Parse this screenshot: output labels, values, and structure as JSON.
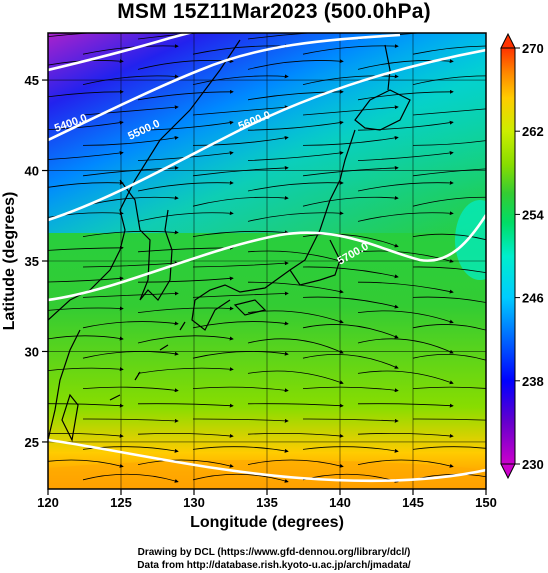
{
  "title": "MSM 15Z11Mar2023 (500.0hPa)",
  "x_axis": {
    "title": "Longitude (degrees)",
    "ticks": [
      "120",
      "125",
      "130",
      "135",
      "140",
      "145",
      "150"
    ],
    "range": [
      120,
      150
    ]
  },
  "y_axis": {
    "title": "Latitude (degrees)",
    "ticks": [
      "25",
      "30",
      "35",
      "40",
      "45"
    ],
    "range": [
      22.4,
      47.6
    ]
  },
  "colorbar": {
    "labels": [
      "270",
      "262",
      "254",
      "246",
      "238",
      "230"
    ],
    "range": [
      230,
      270
    ],
    "colors": [
      "#cc00cc",
      "#6600cc",
      "#0000ff",
      "#0066ff",
      "#00ccff",
      "#00eecc",
      "#00dd66",
      "#33cc33",
      "#88dd00",
      "#ccee00",
      "#ffcc00",
      "#ff8800",
      "#ff3300"
    ]
  },
  "contours": [
    {
      "label": "5400.0"
    },
    {
      "label": "5500.0"
    },
    {
      "label": "5600.0"
    },
    {
      "label": "5700.0"
    }
  ],
  "credits": {
    "line1": "Drawing by DCL (https://www.gfd-dennou.org/library/dcl/)",
    "line2": "Data from http://database.rish.kyoto-u.ac.jp/arch/jmadata/"
  }
}
